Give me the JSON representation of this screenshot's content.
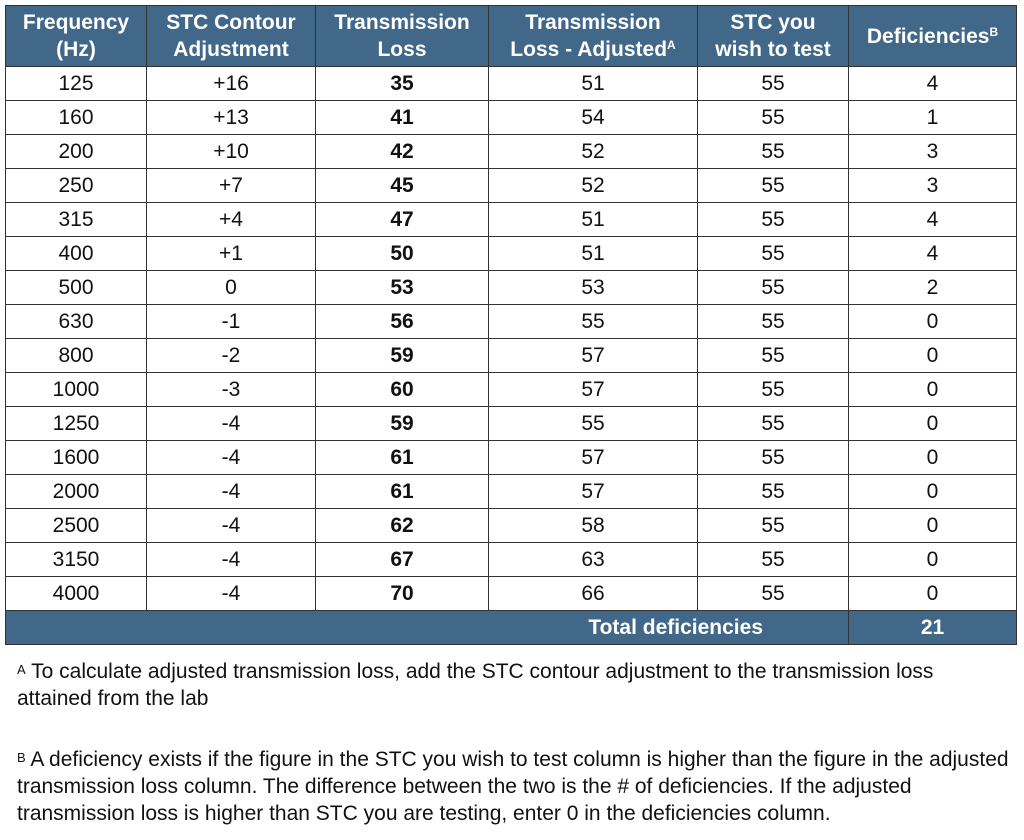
{
  "table": {
    "header": [
      {
        "lines": [
          "Frequency",
          "(Hz)"
        ]
      },
      {
        "lines": [
          "STC Contour",
          "Adjustment"
        ]
      },
      {
        "lines": [
          "Transmission",
          "Loss"
        ]
      },
      {
        "lines": [
          "Transmission",
          "Loss - Adjusted"
        ],
        "sup": "A"
      },
      {
        "lines": [
          "STC you",
          "wish to test"
        ]
      },
      {
        "lines": [
          "Deficiencies"
        ],
        "sup": "B"
      }
    ],
    "rows": [
      [
        125,
        "+16",
        35,
        51,
        55,
        4
      ],
      [
        160,
        "+13",
        41,
        54,
        55,
        1
      ],
      [
        200,
        "+10",
        42,
        52,
        55,
        3
      ],
      [
        250,
        "+7",
        45,
        52,
        55,
        3
      ],
      [
        315,
        "+4",
        47,
        51,
        55,
        4
      ],
      [
        400,
        "+1",
        50,
        51,
        55,
        4
      ],
      [
        500,
        0,
        53,
        53,
        55,
        2
      ],
      [
        630,
        -1,
        56,
        55,
        55,
        0
      ],
      [
        800,
        -2,
        59,
        57,
        55,
        0
      ],
      [
        1000,
        -3,
        60,
        57,
        55,
        0
      ],
      [
        1250,
        -4,
        59,
        55,
        55,
        0
      ],
      [
        1600,
        -4,
        61,
        57,
        55,
        0
      ],
      [
        2000,
        -4,
        61,
        57,
        55,
        0
      ],
      [
        2500,
        -4,
        62,
        58,
        55,
        0
      ],
      [
        3150,
        -4,
        67,
        63,
        55,
        0
      ],
      [
        4000,
        -4,
        70,
        66,
        55,
        0
      ]
    ],
    "total": {
      "label": "Total deficiencies",
      "value": 21
    }
  },
  "notes": [
    {
      "marker": "A",
      "text": "To calculate adjusted transmission loss, add the STC contour adjustment to the transmission loss attained from the lab"
    },
    {
      "marker": "B",
      "text": "A deficiency exists if the figure in the STC you wish to test column is higher than the figure in the adjusted transmission loss column.  The difference between the two is the # of deficiencies.  If the adjusted transmission loss is higher than STC you are testing, enter 0 in the deficiencies column."
    }
  ]
}
